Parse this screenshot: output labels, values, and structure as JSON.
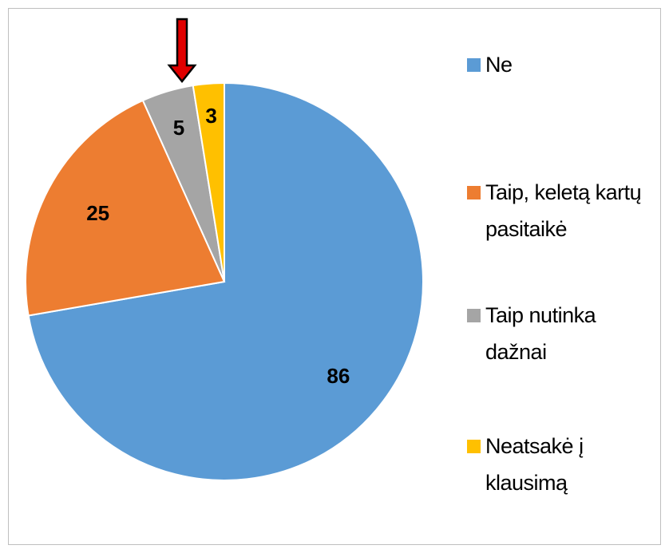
{
  "chart_data": {
    "type": "pie",
    "categories": [
      "Ne",
      "Taip, keletą kartų pasitaikė",
      "Taip nutinka dažnai",
      "Neatsakė į klausimą"
    ],
    "values": [
      86,
      25,
      5,
      3
    ],
    "colors": [
      "#5b9bd5",
      "#ed7d31",
      "#a5a5a5",
      "#ffc000"
    ]
  }
}
